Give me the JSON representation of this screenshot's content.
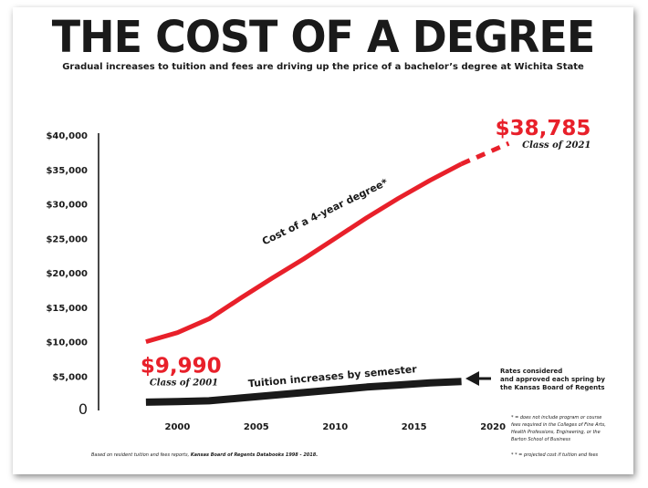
{
  "header": {
    "title": "THE COST OF A DEGREE",
    "subtitle": "Gradual increases to tuition and fees are driving up the price of a bachelor’s degree at Wichita State"
  },
  "chart_data": {
    "type": "line",
    "title": "THE COST OF A DEGREE",
    "subtitle": "Gradual increases to tuition and fees are driving up the price of a bachelor’s degree at Wichita State",
    "xlabel": "",
    "ylabel": "",
    "xlim": [
      1995,
      2023
    ],
    "ylim": [
      0,
      40000
    ],
    "grid": false,
    "x_ticks": [
      2000,
      2005,
      2010,
      2015,
      2020
    ],
    "x_tick_labels": [
      "2000",
      "2005",
      "2010",
      "2015",
      "2020"
    ],
    "y_ticks": [
      0,
      5000,
      10000,
      15000,
      20000,
      25000,
      30000,
      35000,
      40000
    ],
    "y_tick_labels": [
      "0",
      "$5,000",
      "$10,000",
      "$15,000",
      "$20,000",
      "$25,000",
      "$30,000",
      "$35,000",
      "$40,000"
    ],
    "series": [
      {
        "name": "Cost of a 4-year degree*",
        "color": "#e8202a",
        "x": [
          1998,
          2000,
          2002,
          2004,
          2006,
          2008,
          2010,
          2012,
          2014,
          2016,
          2018
        ],
        "y": [
          9990,
          11300,
          13300,
          16300,
          19200,
          22000,
          25000,
          28000,
          30800,
          33400,
          35800
        ]
      },
      {
        "name": "Cost of a 4-year degree* (projected)",
        "color": "#e8202a",
        "dashed": true,
        "x": [
          2018,
          2021
        ],
        "y": [
          35800,
          38785
        ]
      },
      {
        "name": "Tuition increases by semester",
        "color": "#1a1a1a",
        "x": [
          1998,
          2000,
          2002,
          2004,
          2006,
          2008,
          2010,
          2012,
          2014,
          2016,
          2018
        ],
        "y": [
          1200,
          1300,
          1400,
          1800,
          2200,
          2600,
          3000,
          3400,
          3700,
          4000,
          4200
        ]
      }
    ],
    "annotations": {
      "start_value": "$9,990",
      "start_class": "Class of 2001",
      "end_value": "$38,785",
      "end_class": "Class of 2021",
      "red_label": "Cost of a 4-year degree*",
      "black_label": "Tuition increases by semester",
      "arrow_note": [
        "Rates considered",
        "and approved each spring by",
        "the Kansas Board of Regents"
      ]
    }
  },
  "footnotes": {
    "source_prefix": "Based on resident tuition and fees reports, ",
    "source_bold": "Kansas Board of Regents Databooks 1998 - 2018.",
    "note1": [
      "* = does not include program or course",
      "fees required in the Colleges of Fine Arts,",
      "Health Professions, Engineering, or the",
      "Barton School of Business"
    ],
    "note2": "* * = projected cost if tuition and fees"
  }
}
